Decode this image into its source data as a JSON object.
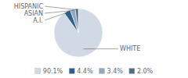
{
  "chart_data": {
    "type": "pie",
    "categories": [
      "WHITE",
      "A.I.",
      "ASIAN",
      "HISPANIC"
    ],
    "values": [
      90.1,
      4.4,
      3.4,
      2.0
    ],
    "value_labels": [
      "90.1%",
      "4.4%",
      "3.4%",
      "2.0%"
    ],
    "colors": [
      "#d0d9e4",
      "#2e5f8a",
      "#8fa8bf",
      "#4a6f8a"
    ],
    "legend": "bottom"
  }
}
